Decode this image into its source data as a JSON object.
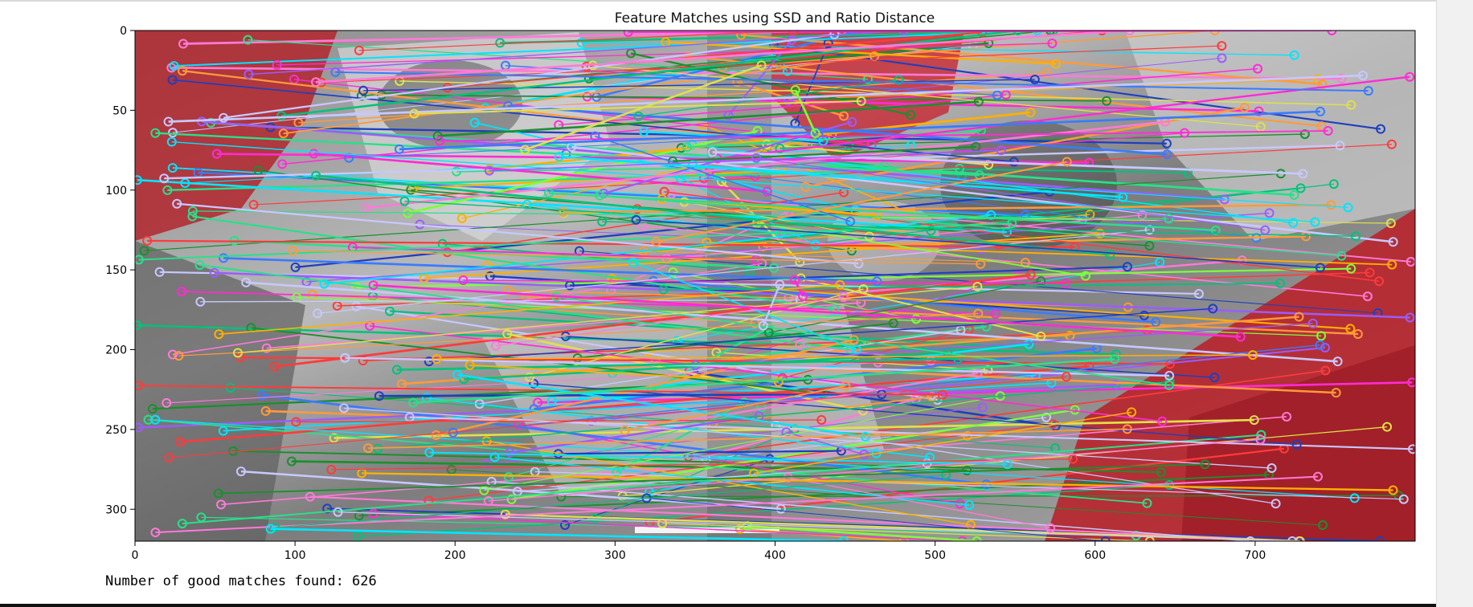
{
  "output": {
    "matches_text": "Number of good matches found: 626"
  },
  "chart_data": {
    "type": "image",
    "title": "Feature Matches using SSD and Ratio Distance",
    "xlabel": "",
    "ylabel": "",
    "xlim": [
      0,
      800
    ],
    "ylim": [
      320,
      0
    ],
    "x_ticks": [
      0,
      100,
      200,
      300,
      400,
      500,
      600,
      700
    ],
    "y_ticks": [
      0,
      50,
      100,
      150,
      200,
      250,
      300
    ],
    "grid": false,
    "match_count": 626
  }
}
